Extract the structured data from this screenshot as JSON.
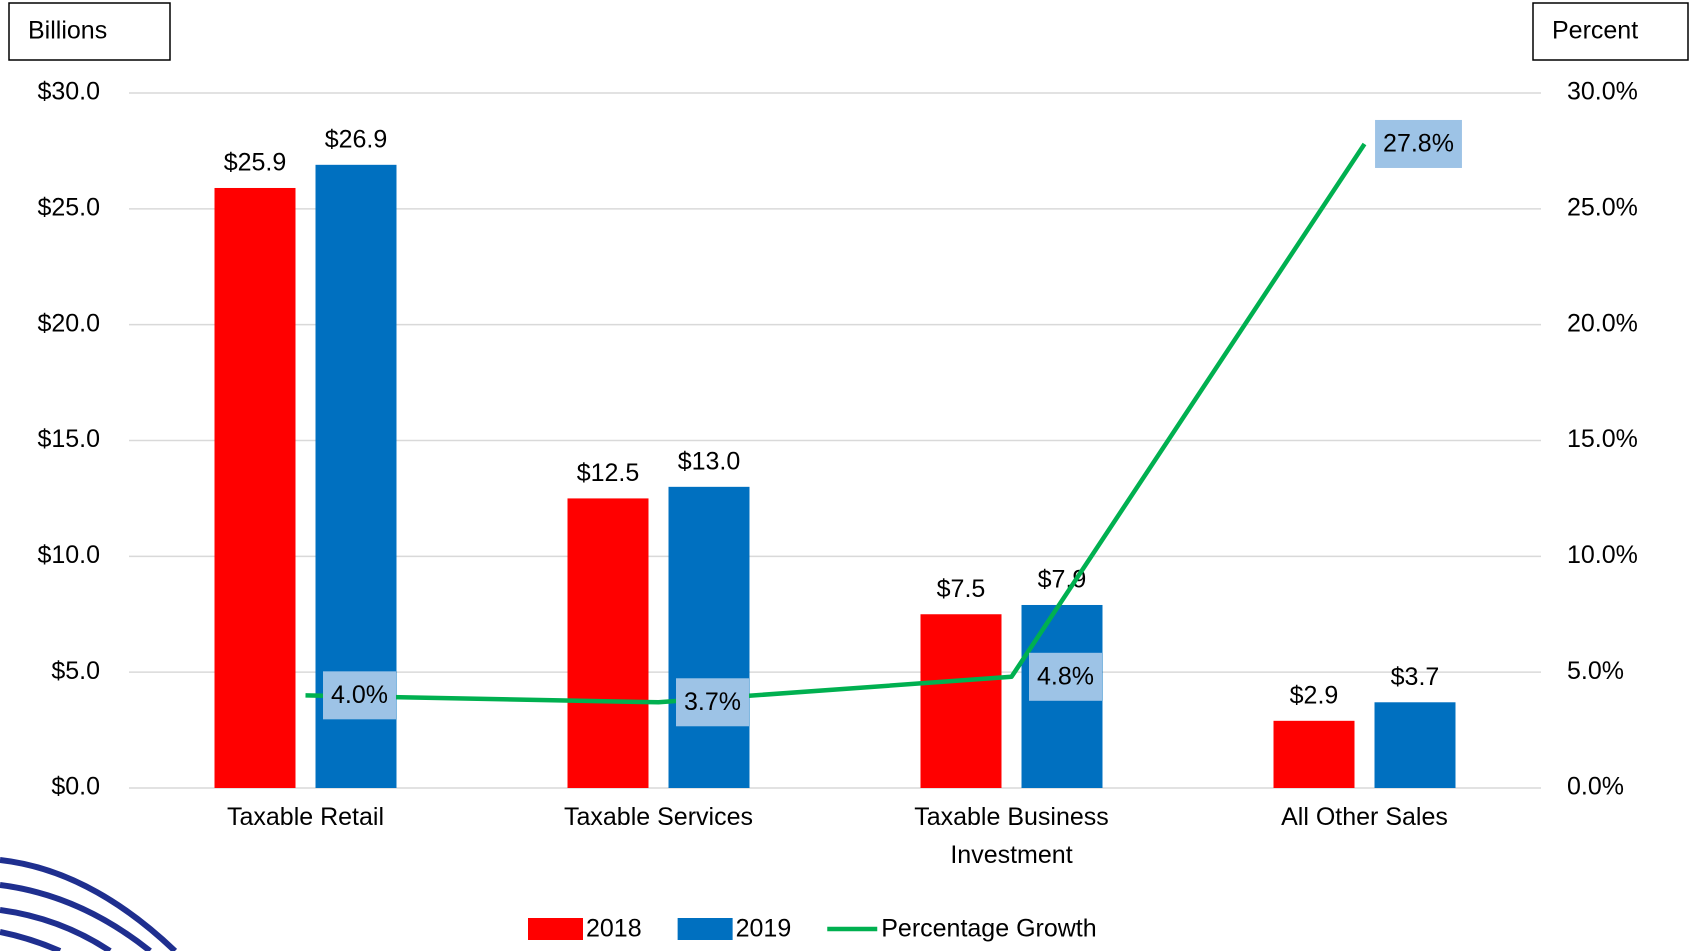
{
  "chart_data": {
    "type": "bar",
    "y_axis_label": "Billions",
    "y2_axis_label": "Percent",
    "categories": [
      "Taxable Retail",
      "Taxable Services",
      "Taxable Business Investment",
      "All Other Sales"
    ],
    "series": [
      {
        "name": "2018",
        "color": "#ff0000",
        "values": [
          25.9,
          12.5,
          7.5,
          2.9
        ],
        "value_labels": [
          "$25.9",
          "$12.5",
          "$7.5",
          "$2.9"
        ]
      },
      {
        "name": "2019",
        "color": "#0070c0",
        "values": [
          26.9,
          13.0,
          7.9,
          3.7
        ],
        "value_labels": [
          "$26.9",
          "$13.0",
          "$7.9",
          "$3.7"
        ]
      },
      {
        "name": "Percentage Growth",
        "type": "line",
        "axis": "y2",
        "color": "#00b050",
        "values": [
          4.0,
          3.7,
          4.8,
          27.8
        ],
        "value_labels": [
          "4.0%",
          "3.7%",
          "4.8%",
          "27.8%"
        ]
      }
    ],
    "ylim": [
      0,
      30
    ],
    "yticks": [
      {
        "value": 0,
        "label": "$0.0"
      },
      {
        "value": 5,
        "label": "$5.0"
      },
      {
        "value": 10,
        "label": "$10.0"
      },
      {
        "value": 15,
        "label": "$15.0"
      },
      {
        "value": 20,
        "label": "$20.0"
      },
      {
        "value": 25,
        "label": "$25.0"
      },
      {
        "value": 30,
        "label": "$30.0"
      }
    ],
    "y2lim": [
      0,
      30
    ],
    "y2ticks": [
      {
        "value": 0,
        "label": "0.0%"
      },
      {
        "value": 5,
        "label": "5.0%"
      },
      {
        "value": 10,
        "label": "10.0%"
      },
      {
        "value": 15,
        "label": "15.0%"
      },
      {
        "value": 20,
        "label": "20.0%"
      },
      {
        "value": 25,
        "label": "25.0%"
      },
      {
        "value": 30,
        "label": "30.0%"
      }
    ],
    "grid": true,
    "legend": "bottom"
  }
}
